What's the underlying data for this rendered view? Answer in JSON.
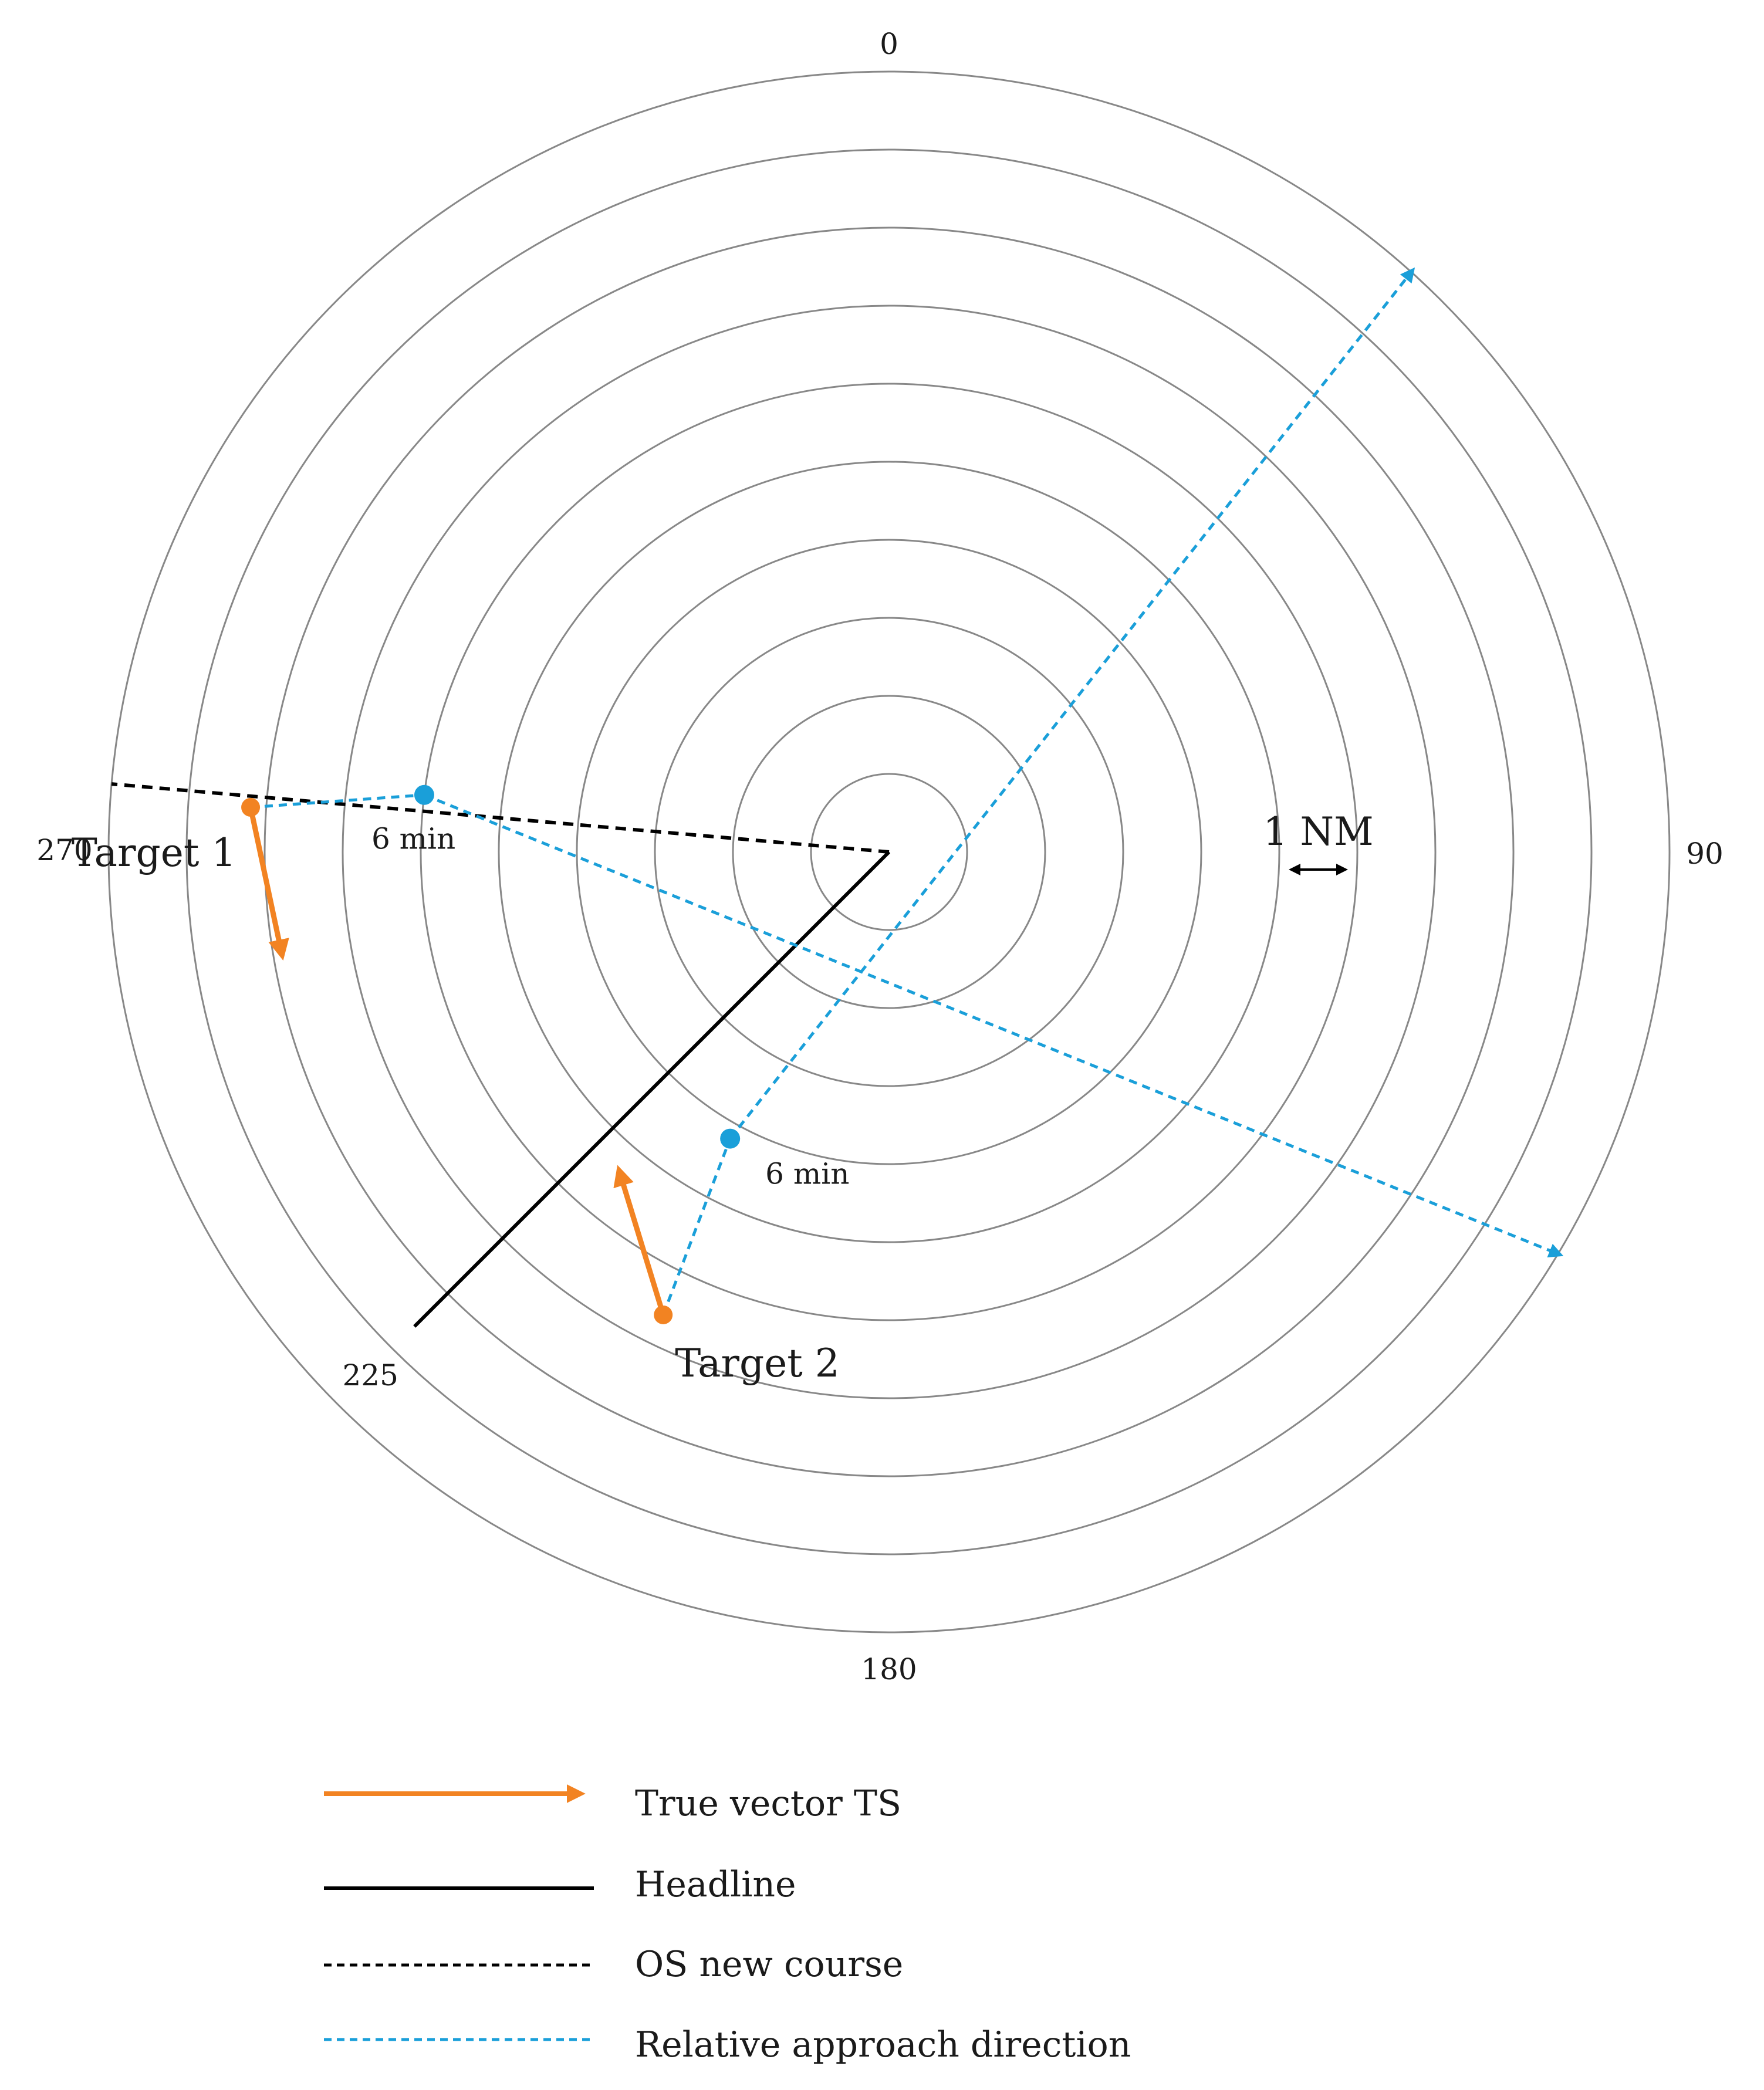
{
  "rings": {
    "count": 10
  },
  "scale": {
    "label": "1 NM",
    "value_nm": 1
  },
  "bearings": [
    {
      "label": "0",
      "deg": 0
    },
    {
      "label": "90",
      "deg": 90
    },
    {
      "label": "180",
      "deg": 180
    },
    {
      "label": "225",
      "deg": 225
    },
    {
      "label": "270",
      "deg": 270
    }
  ],
  "targets": [
    {
      "label": "Target 1",
      "position_nm": {
        "bearing": 274,
        "range": 8.2
      },
      "six_min_position_nm": {
        "bearing": 277,
        "range": 6.0
      },
      "six_min_label": "6 min",
      "true_vector_course": 168,
      "rad_end_bearing": 121
    },
    {
      "label": "Target 2",
      "position_nm": {
        "bearing": 206,
        "range": 6.6
      },
      "six_min_position_nm": {
        "bearing": 209,
        "range": 4.2
      },
      "six_min_label": "6 min",
      "true_vector_course": 343,
      "rad_end_bearing": 42
    }
  ],
  "headline": {
    "bearing": 225
  },
  "os_new_course": {
    "bearing": 275
  },
  "colors": {
    "true_vector": "#f28322",
    "relative": "#1a9fd9",
    "headline": "#000000",
    "new_course": "#000000",
    "rings": "#888888"
  },
  "legend": [
    {
      "key": "true_vector",
      "label": "True vector TS"
    },
    {
      "key": "headline",
      "label": "Headline"
    },
    {
      "key": "new_course",
      "label": "OS new course"
    },
    {
      "key": "relative",
      "label": "Relative approach direction"
    }
  ]
}
